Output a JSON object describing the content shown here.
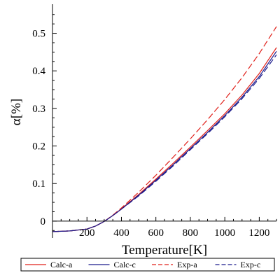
{
  "chart_data": {
    "type": "line",
    "title": "",
    "xlabel": "Temperature[K]",
    "ylabel": "α[%]",
    "xlim": [
      0,
      1300
    ],
    "ylim": [
      -0.03,
      0.57
    ],
    "x_ticks": [
      200,
      400,
      600,
      800,
      1000,
      1200
    ],
    "y_ticks": [
      0,
      0.1,
      0.2,
      0.3,
      0.4,
      0.5
    ],
    "grid": false,
    "legend_position": "bottom",
    "series": [
      {
        "name": "Calc-a",
        "color": "#e0201a",
        "dash": "solid",
        "x": [
          0,
          100,
          200,
          250,
          300,
          350,
          400,
          500,
          600,
          700,
          800,
          900,
          1000,
          1100,
          1200,
          1300
        ],
        "y": [
          -0.028,
          -0.026,
          -0.021,
          -0.013,
          -0.001,
          0.015,
          0.033,
          0.071,
          0.112,
          0.154,
          0.197,
          0.241,
          0.286,
          0.336,
          0.393,
          0.462
        ]
      },
      {
        "name": "Calc-c",
        "color": "#1a1a8c",
        "dash": "solid",
        "x": [
          0,
          100,
          200,
          250,
          300,
          350,
          400,
          500,
          600,
          700,
          800,
          900,
          1000,
          1100,
          1200,
          1300
        ],
        "y": [
          -0.028,
          -0.026,
          -0.021,
          -0.013,
          -0.001,
          0.015,
          0.032,
          0.069,
          0.109,
          0.15,
          0.193,
          0.236,
          0.281,
          0.33,
          0.385,
          0.452
        ]
      },
      {
        "name": "Exp-a",
        "color": "#e0201a",
        "dash": "dashed",
        "x": [
          0,
          100,
          200,
          250,
          300,
          350,
          400,
          500,
          600,
          700,
          800,
          900,
          1000,
          1100,
          1200,
          1300
        ],
        "y": [
          -0.028,
          -0.026,
          -0.021,
          -0.013,
          -0.001,
          0.016,
          0.035,
          0.077,
          0.122,
          0.17,
          0.219,
          0.27,
          0.324,
          0.382,
          0.446,
          0.518
        ]
      },
      {
        "name": "Exp-c",
        "color": "#1a1a8c",
        "dash": "dashed",
        "x": [
          0,
          100,
          200,
          250,
          300,
          350,
          400,
          500,
          600,
          700,
          800,
          900,
          1000,
          1100,
          1200,
          1300
        ],
        "y": [
          -0.028,
          -0.026,
          -0.021,
          -0.013,
          -0.001,
          0.015,
          0.032,
          0.067,
          0.106,
          0.147,
          0.19,
          0.233,
          0.278,
          0.326,
          0.38,
          0.443
        ]
      }
    ]
  }
}
